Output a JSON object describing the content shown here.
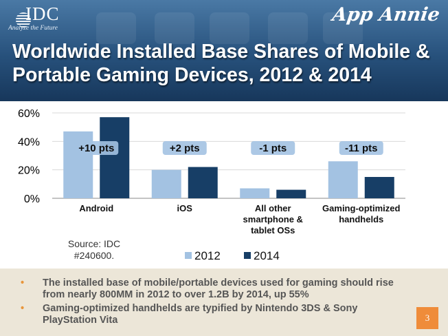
{
  "header": {
    "idc_logo_text": "IDC",
    "idc_tagline": "Analyze the Future",
    "partner_logo_text": "App Annie",
    "title": "Worldwide Installed Base Shares of Mobile & Portable Gaming Devices, 2012 & 2014"
  },
  "colors": {
    "header_blue": "#27517c",
    "series_2012": "#a3c2e2",
    "series_2014": "#173e66",
    "bullet_dot": "#e8953a",
    "page_badge": "#ef8c3a"
  },
  "chart_data": {
    "type": "bar",
    "categories": [
      "Android",
      "iOS",
      "All other smartphone & tablet OSs",
      "Gaming-optimized handhelds"
    ],
    "category_lines": [
      [
        "Android"
      ],
      [
        "iOS"
      ],
      [
        "All other",
        "smartphone &",
        "tablet OSs"
      ],
      [
        "Gaming-optimized",
        "handhelds"
      ]
    ],
    "series": [
      {
        "name": "2012",
        "values": [
          47,
          20,
          7,
          26
        ]
      },
      {
        "name": "2014",
        "values": [
          57,
          22,
          6,
          15
        ]
      }
    ],
    "change_labels": [
      "+10 pts",
      "+2 pts",
      "-1 pts",
      "-11 pts"
    ],
    "y_ticks": [
      "0%",
      "20%",
      "40%",
      "60%"
    ],
    "ylim": [
      0,
      60
    ],
    "grid": true,
    "legend_position": "bottom"
  },
  "source_note": [
    "Source: IDC",
    "#240600."
  ],
  "bullets": [
    "The installed base of mobile/portable devices used for gaming should rise from nearly 800MM in 2012 to over 1.2B by 2014, up 55%",
    "Gaming-optimized handhelds are typified by Nintendo 3DS & Sony PlayStation Vita"
  ],
  "page_number": "3"
}
